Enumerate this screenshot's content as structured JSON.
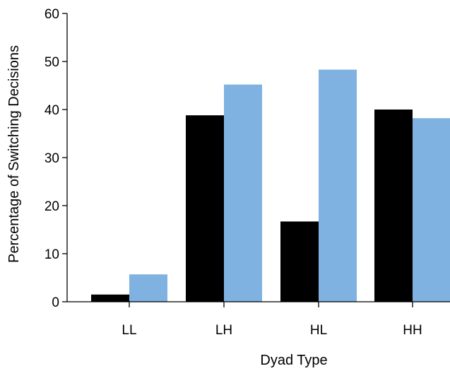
{
  "chart_data": {
    "type": "bar",
    "categories": [
      "LL",
      "LH",
      "HL",
      "HH"
    ],
    "series": [
      {
        "values": [
          1.5,
          38.8,
          16.7,
          40.0
        ],
        "color": "#000000"
      },
      {
        "values": [
          5.7,
          45.2,
          48.3,
          38.2
        ],
        "color": "#7fb2e0"
      }
    ],
    "ylim": [
      0,
      60
    ],
    "yticks": [
      0,
      10,
      20,
      30,
      40,
      50,
      60
    ],
    "xlabel": "Dyad Type",
    "ylabel": "Percentage of Switching Decisions",
    "grid": false,
    "legend": "none"
  }
}
